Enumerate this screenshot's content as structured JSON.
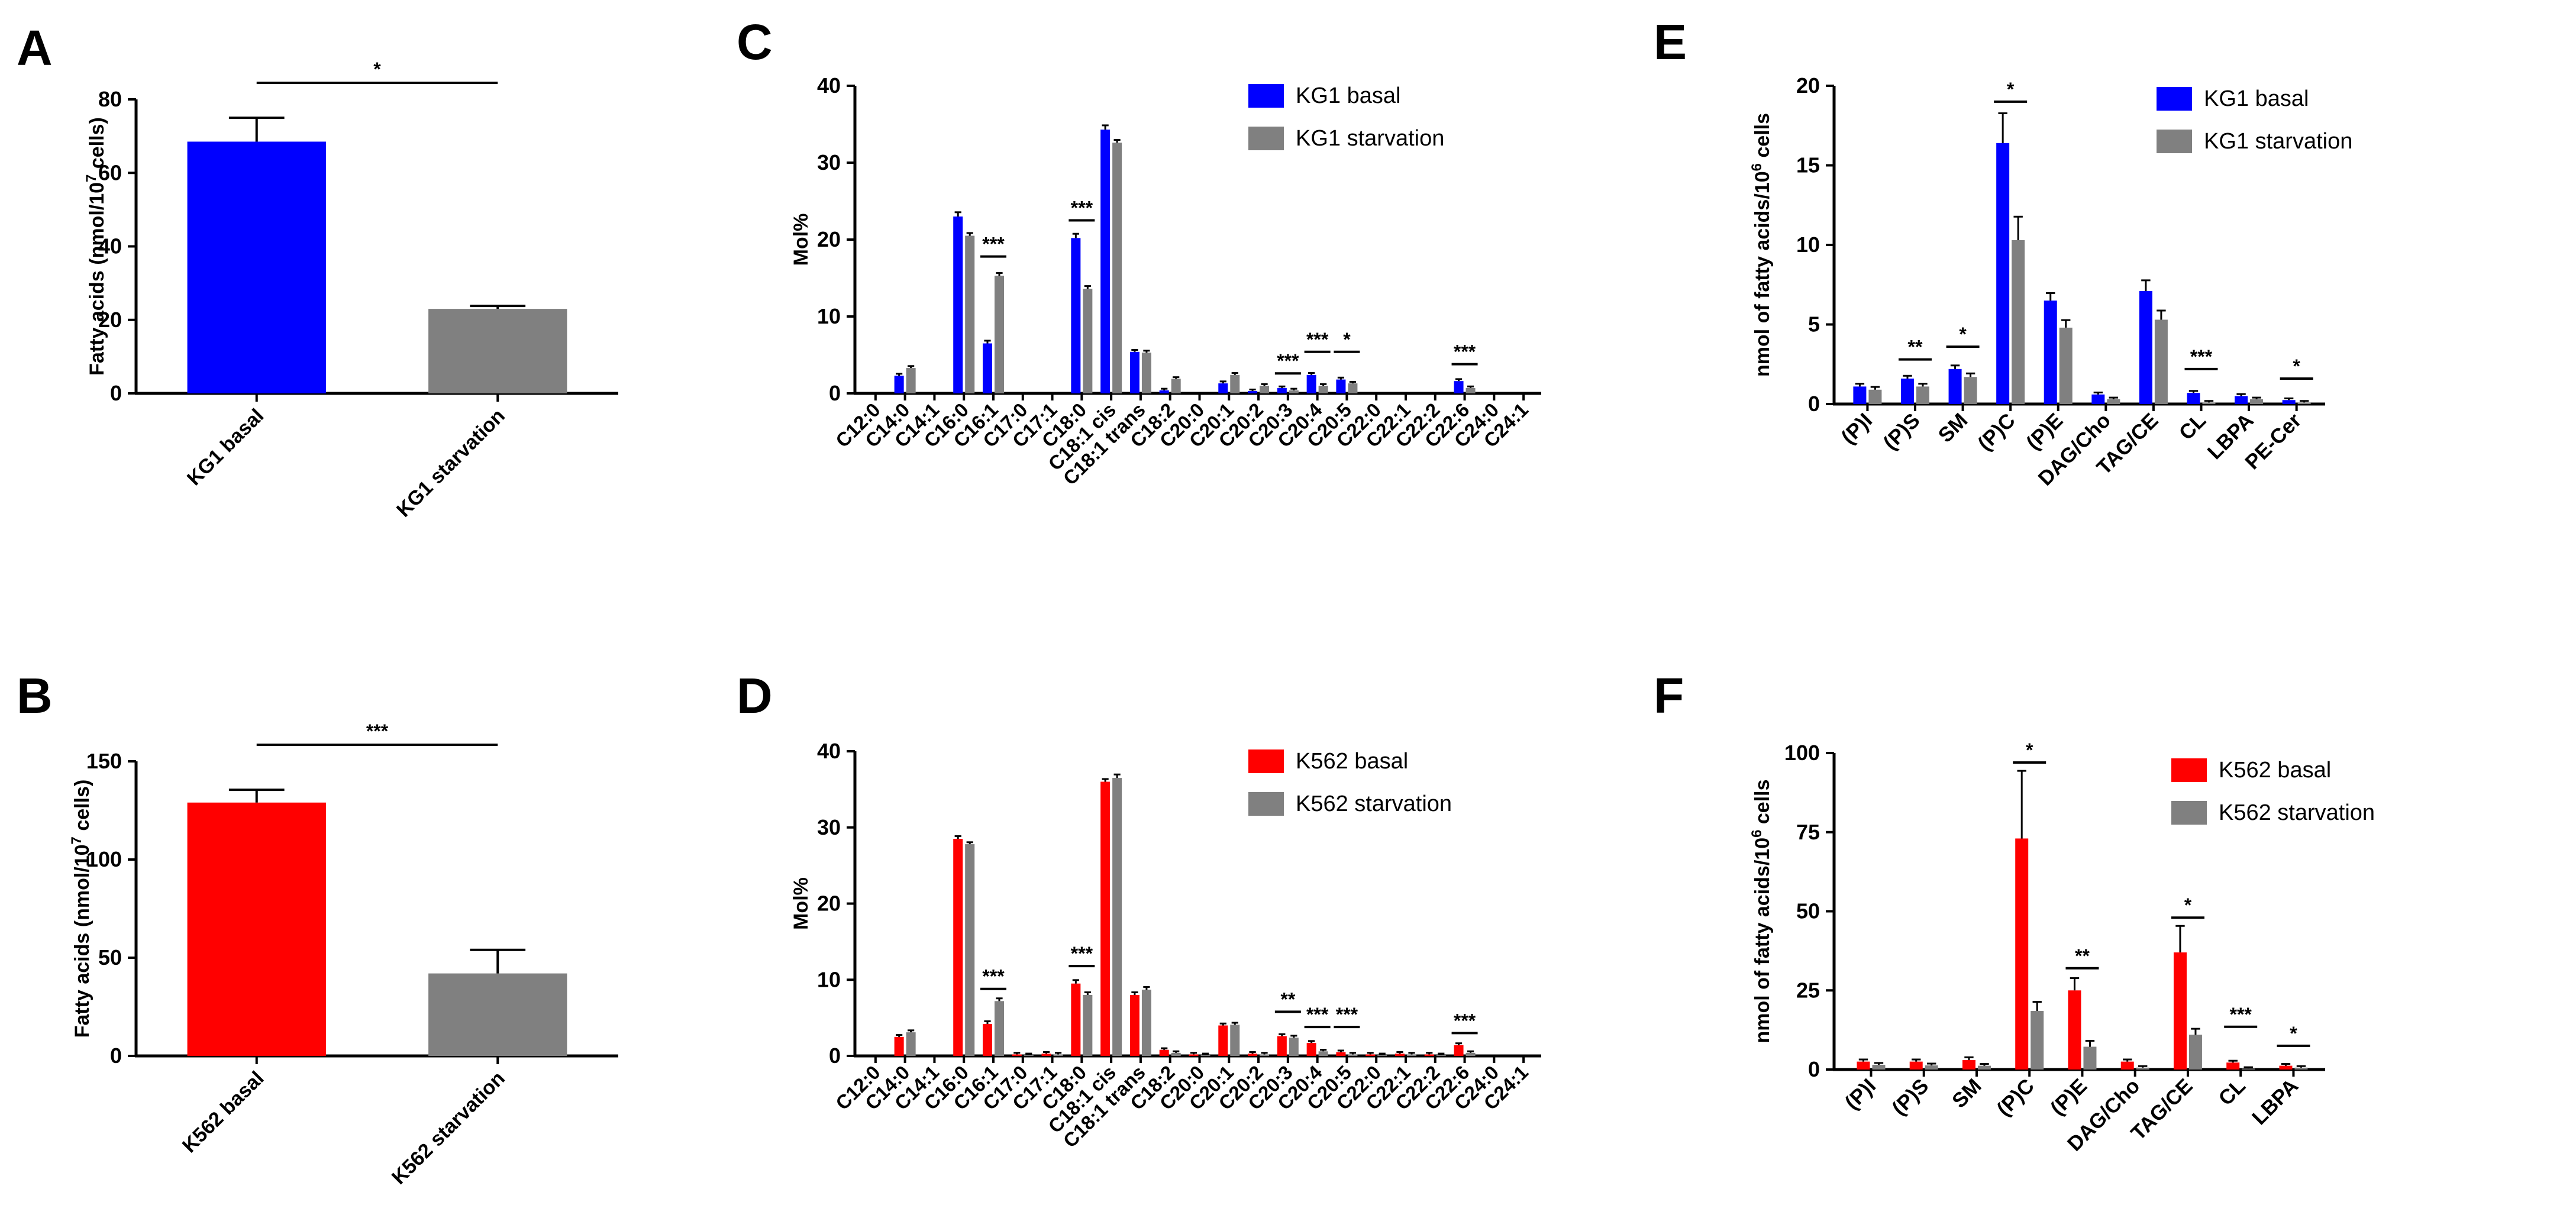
{
  "chart_data": [
    {
      "panel": "A",
      "type": "bar",
      "ylabel_pre": "Fatty acids (nmol/10",
      "ylabel_sup": "7",
      "ylabel_post": " cells)",
      "ylim": [
        0,
        80
      ],
      "yticks": [
        0,
        20,
        40,
        60,
        80
      ],
      "categories": [
        "KG1 basal",
        "KG1 starvation"
      ],
      "values": [
        68.5,
        23
      ],
      "errors": [
        6.5,
        0.8
      ],
      "colors": [
        "#0000ff",
        "#808080"
      ],
      "significance": [
        {
          "from": 0,
          "to": 1,
          "label": "*"
        }
      ]
    },
    {
      "panel": "B",
      "type": "bar",
      "ylabel_pre": "Fatty acids (nmol/10",
      "ylabel_sup": "7",
      "ylabel_post": " cells)",
      "ylim": [
        0,
        150
      ],
      "yticks": [
        0,
        50,
        100,
        150
      ],
      "categories": [
        "K562 basal",
        "K562 starvation"
      ],
      "values": [
        129,
        42
      ],
      "errors": [
        6.5,
        12
      ],
      "colors": [
        "#ff0000",
        "#808080"
      ],
      "significance": [
        {
          "from": 0,
          "to": 1,
          "label": "***"
        }
      ]
    },
    {
      "panel": "C",
      "type": "bar",
      "ylabel": "Mol%",
      "ylim": [
        0,
        40
      ],
      "yticks": [
        0,
        10,
        20,
        30,
        40
      ],
      "categories": [
        "C12:0",
        "C14:0",
        "C14:1",
        "C16:0",
        "C16:1",
        "C17:0",
        "C17:1",
        "C18:0",
        "C18:1 cis",
        "C18:1 trans",
        "C18:2",
        "C20:0",
        "C20:1",
        "C20:2",
        "C20:3",
        "C20:4",
        "C20:5",
        "C22:0",
        "C22:1",
        "C22:2",
        "C22:6",
        "C24:0",
        "C24:1"
      ],
      "series": [
        {
          "name": "KG1 basal",
          "color": "#0000ff",
          "values": [
            0,
            2.3,
            0,
            23.0,
            6.5,
            0,
            0,
            20.2,
            34.3,
            5.4,
            0.4,
            0,
            1.3,
            0.3,
            0.7,
            2.4,
            1.8,
            0,
            0,
            0,
            1.6,
            0,
            0
          ],
          "errors": [
            0,
            0.1,
            0,
            0.4,
            0.2,
            0,
            0,
            0.4,
            0.4,
            0.1,
            0.05,
            0,
            0.1,
            0.05,
            0.05,
            0.1,
            0.1,
            0,
            0,
            0,
            0.1,
            0,
            0
          ]
        },
        {
          "name": "KG1 starvation",
          "color": "#808080",
          "values": [
            0,
            3.3,
            0,
            20.5,
            15.3,
            0,
            0,
            13.6,
            32.6,
            5.3,
            1.9,
            0,
            2.4,
            1.0,
            0.4,
            1.0,
            1.3,
            0,
            0,
            0,
            0.7,
            0,
            0
          ],
          "errors": [
            0,
            0.1,
            0,
            0.2,
            0.2,
            0,
            0,
            0.2,
            0.2,
            0.1,
            0.05,
            0,
            0.1,
            0.05,
            0.05,
            0.05,
            0.05,
            0,
            0,
            0,
            0.05,
            0,
            0
          ]
        }
      ],
      "significance": [
        {
          "cat": 4,
          "y": 17.8,
          "label": "***"
        },
        {
          "cat": 7,
          "y": 22.5,
          "label": "***"
        },
        {
          "cat": 14,
          "y": 2.6,
          "label": "***"
        },
        {
          "cat": 15,
          "y": 5.4,
          "label": "***"
        },
        {
          "cat": 16,
          "y": 5.4,
          "label": "*"
        },
        {
          "cat": 20,
          "y": 3.8,
          "label": "***"
        }
      ],
      "legend_position": "top-right"
    },
    {
      "panel": "D",
      "type": "bar",
      "ylabel": "Mol%",
      "ylim": [
        0,
        40
      ],
      "yticks": [
        0,
        10,
        20,
        30,
        40
      ],
      "categories": [
        "C12:0",
        "C14:0",
        "C14:1",
        "C16:0",
        "C16:1",
        "C17:0",
        "C17:1",
        "C18:0",
        "C18:1 cis",
        "C18:1 trans",
        "C18:2",
        "C20:0",
        "C20:1",
        "C20:2",
        "C20:3",
        "C20:4",
        "C20:5",
        "C22:0",
        "C22:1",
        "C22:2",
        "C22:6",
        "C24:0",
        "C24:1"
      ],
      "series": [
        {
          "name": "K562 basal",
          "color": "#ff0000",
          "values": [
            0,
            2.5,
            0,
            28.5,
            4.2,
            0.2,
            0.3,
            9.5,
            36.0,
            8.0,
            0.8,
            0.2,
            4.0,
            0.3,
            2.6,
            1.7,
            0.5,
            0.2,
            0.3,
            0.2,
            1.4,
            0,
            0
          ],
          "errors": [
            0,
            0.1,
            0,
            0.2,
            0.2,
            0.05,
            0.05,
            0.3,
            0.2,
            0.2,
            0.05,
            0.05,
            0.1,
            0.05,
            0.1,
            0.1,
            0.05,
            0.05,
            0.05,
            0.05,
            0.1,
            0,
            0
          ]
        },
        {
          "name": "K562 starvation",
          "color": "#808080",
          "values": [
            0,
            3.1,
            0,
            27.8,
            7.2,
            0.1,
            0.2,
            8.0,
            36.5,
            8.7,
            0.4,
            0.1,
            4.1,
            0.2,
            2.4,
            0.6,
            0.2,
            0.1,
            0.2,
            0.1,
            0.4,
            0,
            0
          ],
          "errors": [
            0,
            0.1,
            0,
            0.1,
            0.2,
            0.05,
            0.05,
            0.2,
            0.3,
            0.2,
            0.05,
            0.05,
            0.1,
            0.05,
            0.1,
            0.05,
            0.05,
            0.05,
            0.05,
            0.05,
            0.05,
            0,
            0
          ]
        }
      ],
      "significance": [
        {
          "cat": 4,
          "y": 8.8,
          "label": "***"
        },
        {
          "cat": 7,
          "y": 11.8,
          "label": "***"
        },
        {
          "cat": 14,
          "y": 5.8,
          "label": "**"
        },
        {
          "cat": 15,
          "y": 3.8,
          "label": "***"
        },
        {
          "cat": 16,
          "y": 3.8,
          "label": "***"
        },
        {
          "cat": 20,
          "y": 3.0,
          "label": "***"
        }
      ],
      "legend_position": "top-right"
    },
    {
      "panel": "E",
      "type": "bar",
      "ylabel_pre": "nmol of fatty acids/10",
      "ylabel_sup": "6",
      "ylabel_post": " cells",
      "ylim": [
        0,
        20
      ],
      "yticks": [
        0,
        5,
        10,
        15,
        20
      ],
      "categories": [
        "(P)I",
        "(P)S",
        "SM",
        "(P)C",
        "(P)E",
        "DAG/Cho",
        "TAG/CE",
        "CL",
        "LBPA",
        "PE-Cer"
      ],
      "series": [
        {
          "name": "KG1 basal",
          "color": "#0000ff",
          "values": [
            1.1,
            1.6,
            2.2,
            16.4,
            6.5,
            0.6,
            7.1,
            0.7,
            0.5,
            0.25
          ],
          "errors": [
            0.1,
            0.1,
            0.15,
            1.8,
            0.4,
            0.05,
            0.6,
            0.05,
            0.05,
            0.03
          ]
        },
        {
          "name": "KG1 starvation",
          "color": "#808080",
          "values": [
            0.9,
            1.1,
            1.7,
            10.3,
            4.8,
            0.3,
            5.3,
            0.1,
            0.3,
            0.1
          ],
          "errors": [
            0.1,
            0.1,
            0.15,
            1.4,
            0.4,
            0.03,
            0.5,
            0.02,
            0.03,
            0.02
          ]
        }
      ],
      "significance": [
        {
          "cat": 1,
          "y": 2.8,
          "label": "**"
        },
        {
          "cat": 2,
          "y": 3.6,
          "label": "*"
        },
        {
          "cat": 3,
          "y": 19.0,
          "label": "*"
        },
        {
          "cat": 7,
          "y": 2.2,
          "label": "***"
        },
        {
          "cat": 9,
          "y": 1.6,
          "label": "*"
        }
      ],
      "legend_position": "top-right"
    },
    {
      "panel": "F",
      "type": "bar",
      "ylabel_pre": "nmol of fatty acids/10",
      "ylabel_sup": "6",
      "ylabel_post": " cells",
      "ylim": [
        0,
        100
      ],
      "yticks": [
        0,
        25,
        50,
        75,
        100
      ],
      "categories": [
        "(P)I",
        "(P)S",
        "SM",
        "(P)C",
        "(P)E",
        "DAG/Cho",
        "TAG/CE",
        "CL",
        "LBPA"
      ],
      "series": [
        {
          "name": "K562 basal",
          "color": "#ff0000",
          "values": [
            2.5,
            2.5,
            3.0,
            73.0,
            25.0,
            2.5,
            37.0,
            2.2,
            1.2
          ],
          "errors": [
            0.3,
            0.3,
            0.5,
            21.0,
            3.5,
            0.3,
            8.0,
            0.2,
            0.2
          ]
        },
        {
          "name": "K562 starvation",
          "color": "#808080",
          "values": [
            1.5,
            1.3,
            1.2,
            18.5,
            7.2,
            0.6,
            11.0,
            0.3,
            0.6
          ],
          "errors": [
            0.2,
            0.2,
            0.2,
            2.5,
            1.5,
            0.1,
            1.5,
            0.05,
            0.1
          ]
        }
      ],
      "significance": [
        {
          "cat": 3,
          "y": 97.0,
          "label": "*"
        },
        {
          "cat": 4,
          "y": 32.0,
          "label": "**"
        },
        {
          "cat": 6,
          "y": 48.0,
          "label": "*"
        },
        {
          "cat": 7,
          "y": 13.5,
          "label": "***"
        },
        {
          "cat": 8,
          "y": 7.5,
          "label": "*"
        }
      ],
      "legend_position": "top-right"
    }
  ]
}
